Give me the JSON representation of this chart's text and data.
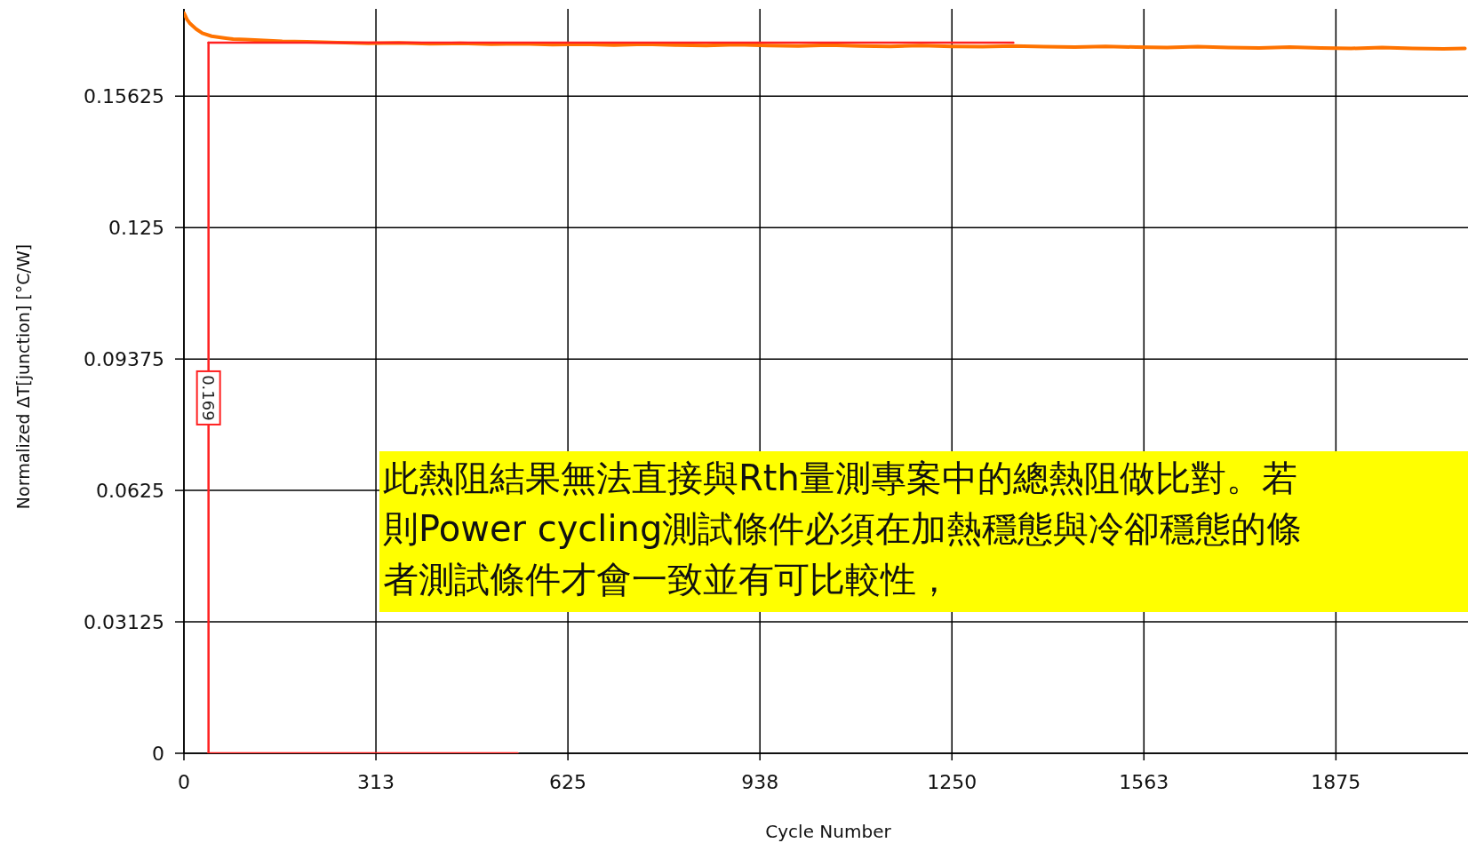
{
  "chart_data": {
    "type": "line",
    "xlabel": "Cycle Number",
    "ylabel": "Normalized ΔT[junction] [°C/W]",
    "xlim": [
      0,
      2090
    ],
    "ylim": [
      0,
      0.177
    ],
    "xticks": [
      0,
      {
        "value": 312.5,
        "label": "313"
      },
      {
        "value": 625,
        "label": "625"
      },
      {
        "value": 937.5,
        "label": "938"
      },
      {
        "value": 1250,
        "label": "1250"
      },
      {
        "value": 1562.5,
        "label": "1563"
      },
      {
        "value": 1875,
        "label": "1875"
      }
    ],
    "yticks": [
      0,
      0.03125,
      0.0625,
      0.09375,
      0.125,
      0.15625
    ],
    "grid": true,
    "marker": "none",
    "line_style": "solid",
    "series": [
      {
        "color": "#ff7300",
        "x": [
          0,
          5,
          10,
          20,
          30,
          45,
          60,
          80,
          100,
          130,
          160,
          200,
          250,
          300,
          350,
          400,
          450,
          500,
          550,
          600,
          650,
          700,
          750,
          800,
          850,
          900,
          950,
          1000,
          1050,
          1100,
          1150,
          1200,
          1250,
          1300,
          1350,
          1400,
          1450,
          1500,
          1550,
          1600,
          1650,
          1700,
          1750,
          1800,
          1850,
          1900,
          1950,
          2000,
          2050,
          2085
        ],
        "values": [
          0.176,
          0.1745,
          0.1735,
          0.1722,
          0.1712,
          0.1705,
          0.1702,
          0.1698,
          0.1697,
          0.1695,
          0.1693,
          0.1692,
          0.169,
          0.1688,
          0.1689,
          0.1687,
          0.1688,
          0.1686,
          0.1687,
          0.1685,
          0.1686,
          0.1684,
          0.1686,
          0.1684,
          0.1683,
          0.1685,
          0.1683,
          0.1682,
          0.1684,
          0.1682,
          0.1681,
          0.1683,
          0.1681,
          0.168,
          0.1682,
          0.168,
          0.1679,
          0.1681,
          0.1679,
          0.1678,
          0.168,
          0.1678,
          0.1677,
          0.1679,
          0.1677,
          0.1676,
          0.1678,
          0.1676,
          0.1675,
          0.1676
        ]
      },
      {
        "color": "#ff2020",
        "x": [
          40,
          1350
        ],
        "values": [
          0.169,
          0.169
        ]
      },
      {
        "color": "#ff2020",
        "x": [
          40,
          543
        ],
        "values": [
          0,
          0
        ]
      },
      {
        "color": "#ff2020",
        "x": [
          40,
          40
        ],
        "values": [
          0,
          0.169
        ]
      }
    ],
    "annotations": [
      {
        "text": "0.169",
        "x": 40,
        "y": 0.0845
      },
      "此熱阻結果無法直接與Rth量測專案中的總熱阻做比對。若",
      "則Power cycling測試條件必須在加熱穩態與冷卻穩態的條",
      "者測試條件才會一致並有可比較性，"
    ]
  }
}
